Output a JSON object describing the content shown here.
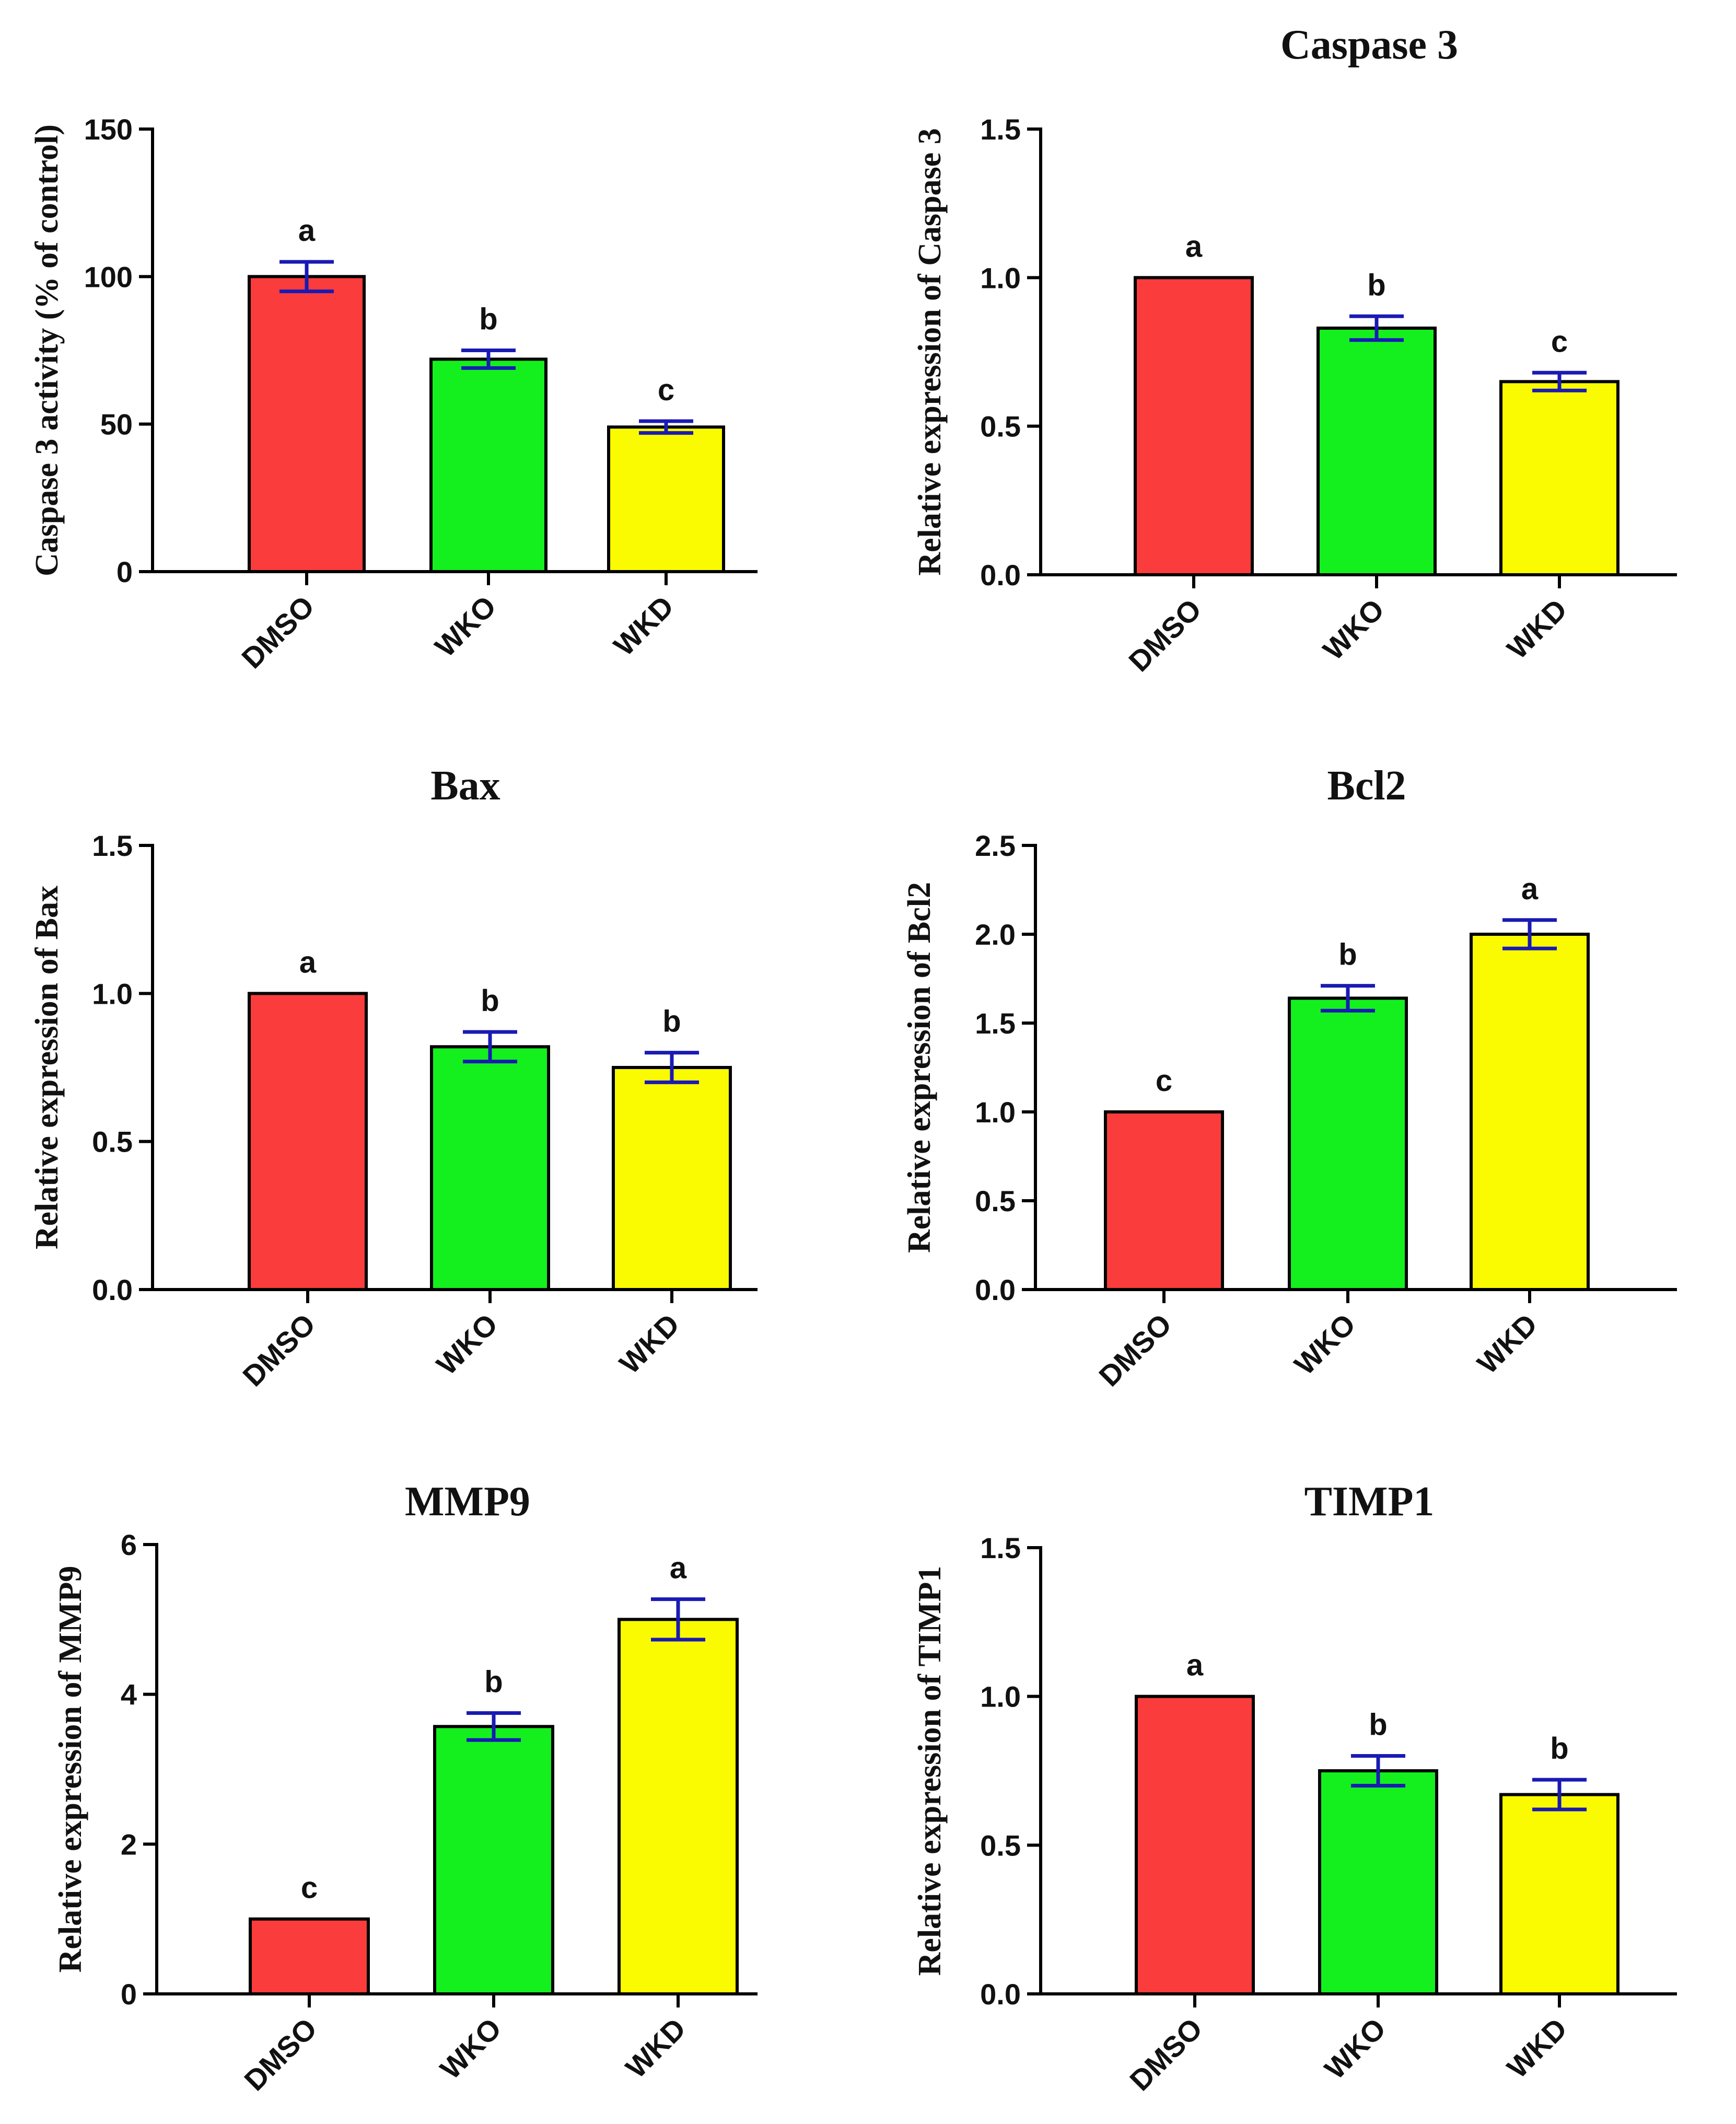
{
  "colors": {
    "DMSO": "#fa3c3c",
    "WKO": "#14f01e",
    "WKD": "#fafa00",
    "error_bar": "#1a1ab4"
  },
  "chart_data": [
    {
      "type": "bar",
      "title": "",
      "ylabel": "Caspase 3 activity (% of control)",
      "xlabel": "",
      "categories": [
        "DMSO",
        "WKO",
        "WKD"
      ],
      "values": [
        100,
        72,
        49
      ],
      "errors": [
        5,
        3,
        2
      ],
      "letters": [
        "a",
        "b",
        "c"
      ],
      "ylim": [
        0,
        150
      ],
      "yticks": [
        "0",
        "50",
        "100",
        "150"
      ]
    },
    {
      "type": "bar",
      "title": "Caspase 3",
      "ylabel": "Relative expression of Caspase 3",
      "xlabel": "",
      "categories": [
        "DMSO",
        "WKO",
        "WKD"
      ],
      "values": [
        1.0,
        0.83,
        0.65
      ],
      "errors": [
        0,
        0.04,
        0.03
      ],
      "letters": [
        "a",
        "b",
        "c"
      ],
      "ylim": [
        0,
        1.5
      ],
      "yticks": [
        "0.0",
        "0.5",
        "1.0",
        "1.5"
      ]
    },
    {
      "type": "bar",
      "title": "Bax",
      "ylabel": "Relative expression of Bax",
      "xlabel": "",
      "categories": [
        "DMSO",
        "WKO",
        "WKD"
      ],
      "values": [
        1.0,
        0.82,
        0.75
      ],
      "errors": [
        0,
        0.05,
        0.05
      ],
      "letters": [
        "a",
        "b",
        "b"
      ],
      "ylim": [
        0,
        1.5
      ],
      "yticks": [
        "0.0",
        "0.5",
        "1.0",
        "1.5"
      ]
    },
    {
      "type": "bar",
      "title": "Bcl2",
      "ylabel": "Relative expression of Bcl2",
      "xlabel": "",
      "categories": [
        "DMSO",
        "WKO",
        "WKD"
      ],
      "values": [
        1.0,
        1.64,
        2.0
      ],
      "errors": [
        0,
        0.07,
        0.08
      ],
      "letters": [
        "c",
        "b",
        "a"
      ],
      "ylim": [
        0,
        2.5
      ],
      "yticks": [
        "0.0",
        "0.5",
        "1.0",
        "1.5",
        "2.0",
        "2.5"
      ]
    },
    {
      "type": "bar",
      "title": "MMP9",
      "ylabel": "Relative expression of MMP9",
      "xlabel": "",
      "categories": [
        "DMSO",
        "WKO",
        "WKD"
      ],
      "values": [
        1.0,
        3.57,
        5.0
      ],
      "errors": [
        0,
        0.18,
        0.27
      ],
      "letters": [
        "c",
        "b",
        "a"
      ],
      "ylim": [
        0,
        6
      ],
      "yticks": [
        "0",
        "2",
        "4",
        "6"
      ]
    },
    {
      "type": "bar",
      "title": "TIMP1",
      "ylabel": "Relative expression of TIMP1",
      "xlabel": "",
      "categories": [
        "DMSO",
        "WKO",
        "WKD"
      ],
      "values": [
        1.0,
        0.75,
        0.67
      ],
      "errors": [
        0,
        0.05,
        0.05
      ],
      "letters": [
        "a",
        "b",
        "b"
      ],
      "ylim": [
        0,
        1.5
      ],
      "yticks": [
        "0.0",
        "0.5",
        "1.0",
        "1.5"
      ]
    }
  ]
}
